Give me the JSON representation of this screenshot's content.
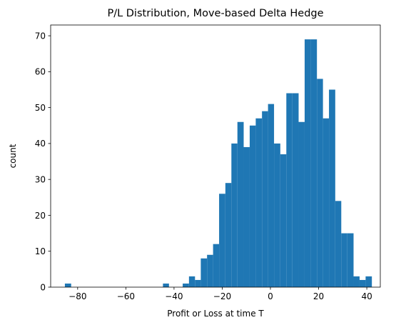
{
  "chart_data": {
    "type": "histogram",
    "title": "P/L Distribution, Move-based Delta Hedge",
    "xlabel": "Profit or Loss at time T",
    "ylabel": "count",
    "bar_color": "#1f77b4",
    "xlim": [
      -91.2,
      45.6
    ],
    "ylim": [
      0,
      73
    ],
    "x_ticks": [
      -80,
      -60,
      -40,
      -20,
      0,
      20,
      40
    ],
    "x_tick_labels": [
      "−80",
      "−60",
      "−40",
      "−20",
      "0",
      "20",
      "40"
    ],
    "y_ticks": [
      0,
      10,
      20,
      30,
      40,
      50,
      60,
      70
    ],
    "y_tick_labels": [
      "0",
      "10",
      "20",
      "30",
      "40",
      "50",
      "60",
      "70"
    ],
    "bins": [
      {
        "x0": -85.3,
        "x1": -82.7,
        "count": 1
      },
      {
        "x0": -44.6,
        "x1": -42.1,
        "count": 1
      },
      {
        "x0": -36.4,
        "x1": -33.8,
        "count": 1
      },
      {
        "x0": -33.8,
        "x1": -31.3,
        "count": 3
      },
      {
        "x0": -31.3,
        "x1": -28.9,
        "count": 2
      },
      {
        "x0": -28.9,
        "x1": -26.3,
        "count": 8
      },
      {
        "x0": -26.3,
        "x1": -23.8,
        "count": 9
      },
      {
        "x0": -23.8,
        "x1": -21.3,
        "count": 12
      },
      {
        "x0": -21.3,
        "x1": -18.7,
        "count": 26
      },
      {
        "x0": -18.7,
        "x1": -16.2,
        "count": 29
      },
      {
        "x0": -16.2,
        "x1": -13.7,
        "count": 40
      },
      {
        "x0": -13.7,
        "x1": -11.1,
        "count": 46
      },
      {
        "x0": -11.1,
        "x1": -8.6,
        "count": 39
      },
      {
        "x0": -8.6,
        "x1": -6.1,
        "count": 45
      },
      {
        "x0": -6.1,
        "x1": -3.5,
        "count": 47
      },
      {
        "x0": -3.5,
        "x1": -1.0,
        "count": 49
      },
      {
        "x0": -1.0,
        "x1": 1.5,
        "count": 51
      },
      {
        "x0": 1.5,
        "x1": 4.1,
        "count": 40
      },
      {
        "x0": 4.1,
        "x1": 6.6,
        "count": 37
      },
      {
        "x0": 6.6,
        "x1": 9.1,
        "count": 54
      },
      {
        "x0": 9.1,
        "x1": 11.7,
        "count": 54
      },
      {
        "x0": 11.7,
        "x1": 14.2,
        "count": 46
      },
      {
        "x0": 14.2,
        "x1": 16.7,
        "count": 69
      },
      {
        "x0": 16.7,
        "x1": 19.3,
        "count": 69
      },
      {
        "x0": 19.3,
        "x1": 21.8,
        "count": 58
      },
      {
        "x0": 21.8,
        "x1": 24.3,
        "count": 47
      },
      {
        "x0": 24.3,
        "x1": 26.9,
        "count": 55
      },
      {
        "x0": 26.9,
        "x1": 29.4,
        "count": 24
      },
      {
        "x0": 29.4,
        "x1": 31.9,
        "count": 15
      },
      {
        "x0": 31.9,
        "x1": 34.5,
        "count": 15
      },
      {
        "x0": 34.5,
        "x1": 37.0,
        "count": 3
      },
      {
        "x0": 37.0,
        "x1": 39.5,
        "count": 2
      },
      {
        "x0": 39.5,
        "x1": 42.1,
        "count": 3
      }
    ]
  }
}
